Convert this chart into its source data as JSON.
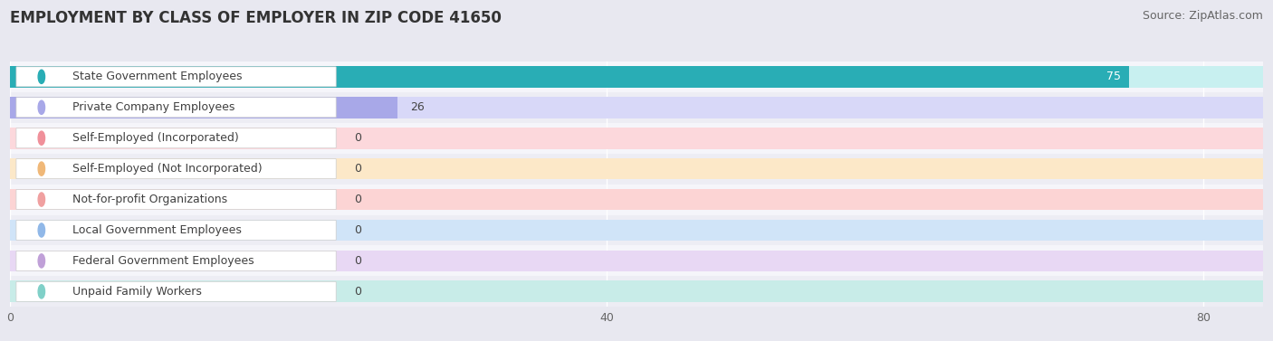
{
  "title": "EMPLOYMENT BY CLASS OF EMPLOYER IN ZIP CODE 41650",
  "source": "Source: ZipAtlas.com",
  "categories": [
    "State Government Employees",
    "Private Company Employees",
    "Self-Employed (Incorporated)",
    "Self-Employed (Not Incorporated)",
    "Not-for-profit Organizations",
    "Local Government Employees",
    "Federal Government Employees",
    "Unpaid Family Workers"
  ],
  "values": [
    75,
    26,
    0,
    0,
    0,
    0,
    0,
    0
  ],
  "bar_colors": [
    "#29adb5",
    "#a8a8e8",
    "#f0909a",
    "#f0b878",
    "#f0a0a0",
    "#90b8e8",
    "#c0a0d8",
    "#80d0c8"
  ],
  "bar_bg_colors": [
    "#c8f0f0",
    "#d8d8f8",
    "#fcd8dc",
    "#fce8c8",
    "#fcd4d4",
    "#d0e4f8",
    "#e8d8f4",
    "#c8ece8"
  ],
  "label_box_bg": "#ffffff",
  "row_bg_odd": "#f2f2f7",
  "row_bg_even": "#ebebf2",
  "xlim": [
    0,
    84
  ],
  "xticks": [
    0,
    40,
    80
  ],
  "background_color": "#e8e8f0",
  "title_fontsize": 12,
  "source_fontsize": 9,
  "label_fontsize": 9,
  "value_fontsize": 9,
  "bar_height": 0.7
}
